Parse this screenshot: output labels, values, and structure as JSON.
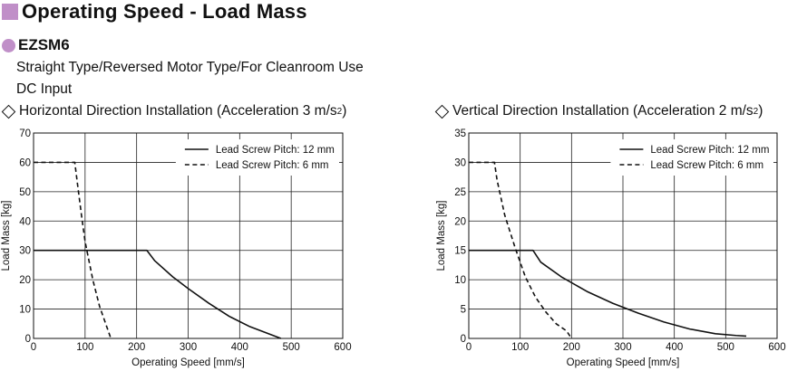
{
  "header": {
    "title": "Operating Speed - Load Mass",
    "model": "EZSM6",
    "description_lines": [
      "Straight Type/Reversed Motor Type/For Cleanroom Use",
      "DC Input"
    ],
    "accent_color": "#c08fc8"
  },
  "chart_data": [
    {
      "type": "line",
      "heading_prefix": "Horizontal Direction Installation (Acceleration 3 m/s",
      "heading_sup": "2",
      "heading_suffix": ")",
      "xlabel": "Operating Speed [mm/s]",
      "ylabel": "Load Mass [kg]",
      "xlim": [
        0,
        600
      ],
      "ylim": [
        0,
        70
      ],
      "xticks": [
        0,
        100,
        200,
        300,
        400,
        500,
        600
      ],
      "yticks": [
        0,
        10,
        20,
        30,
        40,
        50,
        60,
        70
      ],
      "grid": true,
      "legend_position": "top-right",
      "series": [
        {
          "name": "Lead Screw Pitch: 12 mm",
          "style": "solid",
          "x": [
            0,
            220,
            235,
            270,
            300,
            340,
            380,
            420,
            450,
            480
          ],
          "y": [
            30,
            30,
            26.5,
            21,
            17,
            12,
            7.5,
            4,
            2,
            0
          ]
        },
        {
          "name": "Lead Screw Pitch: 6 mm",
          "style": "dashed",
          "x": [
            0,
            80,
            85,
            93,
            100,
            115,
            128,
            140,
            150
          ],
          "y": [
            60,
            60,
            53,
            42,
            33,
            20,
            11,
            5,
            0
          ]
        }
      ]
    },
    {
      "type": "line",
      "heading_prefix": "Vertical Direction Installation (Acceleration 2 m/s",
      "heading_sup": "2",
      "heading_suffix": ")",
      "xlabel": "Operating Speed [mm/s]",
      "ylabel": "Load Mass [kg]",
      "xlim": [
        0,
        600
      ],
      "ylim": [
        0,
        35
      ],
      "xticks": [
        0,
        100,
        200,
        300,
        400,
        500,
        600
      ],
      "yticks": [
        0,
        5,
        10,
        15,
        20,
        25,
        30,
        35
      ],
      "grid": true,
      "legend_position": "top-right",
      "series": [
        {
          "name": "Lead Screw Pitch: 12 mm",
          "style": "solid",
          "x": [
            0,
            125,
            140,
            180,
            230,
            280,
            330,
            380,
            430,
            480,
            520,
            540
          ],
          "y": [
            15,
            15,
            13,
            10.5,
            8,
            6,
            4.3,
            2.8,
            1.6,
            0.8,
            0.5,
            0.4
          ]
        },
        {
          "name": "Lead Screw Pitch: 6 mm",
          "style": "dashed",
          "x": [
            0,
            50,
            55,
            70,
            90,
            110,
            130,
            150,
            170,
            190,
            200
          ],
          "y": [
            30,
            30,
            27,
            21,
            15.5,
            10.5,
            7,
            4.5,
            2.5,
            1.3,
            0
          ]
        }
      ]
    }
  ]
}
